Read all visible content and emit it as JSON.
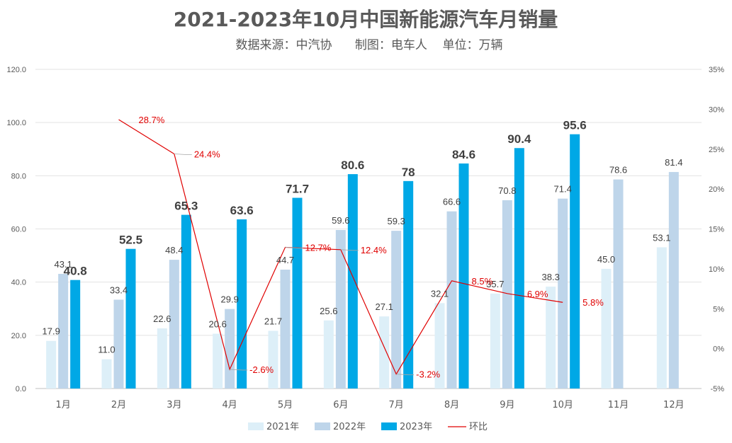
{
  "chart_data": {
    "type": "bar",
    "title": "2021-2023年10月中国新能源汽车月销量",
    "subtitle": "数据来源：中汽协      制图：电车人    单位：万辆",
    "categories": [
      "1月",
      "2月",
      "3月",
      "4月",
      "5月",
      "6月",
      "7月",
      "8月",
      "9月",
      "10月",
      "11月",
      "12月"
    ],
    "series": [
      {
        "name": "2021年",
        "color": "#ddeff8",
        "values": [
          17.9,
          11.0,
          22.6,
          20.6,
          21.7,
          25.6,
          27.1,
          32.1,
          35.7,
          38.3,
          45.0,
          53.1
        ],
        "labels": [
          "17.9",
          "11.0",
          "22.6",
          "20.6",
          "21.7",
          "25.6",
          "27.1",
          "32.1",
          "35.7",
          "38.3",
          "45.0",
          "53.1"
        ]
      },
      {
        "name": "2022年",
        "color": "#bed5ea",
        "values": [
          43.1,
          33.4,
          48.4,
          29.9,
          44.7,
          59.6,
          59.3,
          66.6,
          70.8,
          71.4,
          78.6,
          81.4
        ],
        "labels": [
          "43.1",
          "33.4",
          "48.4",
          "29.9",
          "44.7",
          "59.6",
          "59.3",
          "66.6",
          "70.8",
          "71.4",
          "78.6",
          "81.4"
        ]
      },
      {
        "name": "2023年",
        "color": "#00a8e6",
        "values": [
          40.8,
          52.5,
          65.3,
          63.6,
          71.7,
          80.6,
          78,
          84.6,
          90.4,
          95.6,
          null,
          null
        ],
        "labels": [
          "40.8",
          "52.5",
          "65.3",
          "63.6",
          "71.7",
          "80.6",
          "78",
          "84.6",
          "90.4",
          "95.6",
          "",
          ""
        ]
      }
    ],
    "line": {
      "name": "环比",
      "color": "#e00000",
      "values": [
        null,
        28.7,
        24.4,
        -2.6,
        12.7,
        12.4,
        -3.2,
        8.5,
        6.9,
        5.8,
        null,
        null
      ],
      "labels": [
        "",
        "28.7%",
        "24.4%",
        "-2.6%",
        "12.7%",
        "12.4%",
        "-3.2%",
        "8.5%",
        "6.9%",
        "5.8%",
        "",
        ""
      ]
    },
    "y_left": {
      "min": 0,
      "max": 120,
      "ticks": [
        "0.0",
        "20.0",
        "40.0",
        "60.0",
        "80.0",
        "100.0",
        "120.0"
      ]
    },
    "y_right": {
      "min": -5,
      "max": 35,
      "ticks": [
        "-5%",
        "0%",
        "5%",
        "10%",
        "15%",
        "20%",
        "25%",
        "30%",
        "35%"
      ]
    },
    "legend_position": "bottom",
    "grid": true
  }
}
